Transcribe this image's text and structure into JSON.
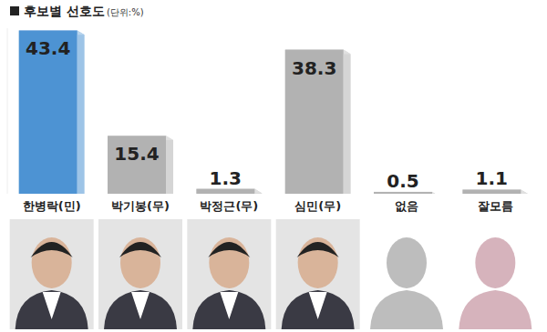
{
  "chart_data": {
    "type": "bar",
    "title": "후보별 선호도",
    "subtitle": "(단위:%)",
    "categories": [
      "한병락(민)",
      "박기봉(무)",
      "박정근(무)",
      "심민(무)",
      "없음",
      "잘모름"
    ],
    "values": [
      43.4,
      15.4,
      1.3,
      38.3,
      0.5,
      1.1
    ],
    "colors": [
      "#4d93d3",
      "#b2b2b2",
      "#b2b2b2",
      "#b2b2b2",
      "#b2b2b2",
      "#b2b2b2"
    ],
    "ylim": [
      0,
      44
    ],
    "data_labels": true,
    "tick_labels": "x",
    "grid": false
  }
}
